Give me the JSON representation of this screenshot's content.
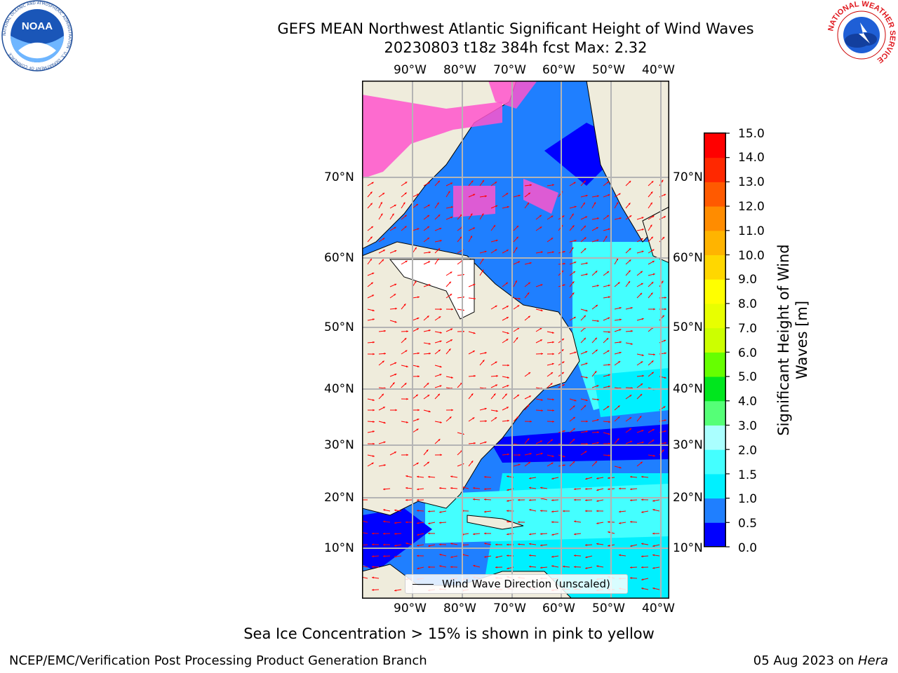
{
  "title": {
    "line1": "GEFS MEAN Northwest Atlantic Significant Height of Wind Waves",
    "line2": "20230803 t18z 384h fcst   Max: 2.32"
  },
  "logos": {
    "noaa": {
      "text": "NOAA",
      "ring_text": "NATIONAL OCEANIC AND ATMOSPHERIC ADMINISTRATION · U.S. DEPARTMENT OF COMMERCE"
    },
    "nws": {
      "ring_text": "NATIONAL WEATHER SERVICE"
    }
  },
  "map": {
    "lon_labels": [
      "90°W",
      "80°W",
      "70°W",
      "60°W",
      "50°W",
      "40°W"
    ],
    "lat_labels": [
      "70°N",
      "60°N",
      "50°N",
      "40°N",
      "30°N",
      "20°N",
      "10°N"
    ],
    "legend": "Wind Wave Direction (unscaled)",
    "colors": {
      "land": "#efecdc",
      "grid": "#b4b4b4",
      "arrows": "#ff0000",
      "sea_ice": "#ff55cc"
    }
  },
  "colorbar": {
    "label": "Significant Height of Wind Waves [m]",
    "ticks": [
      "15.0",
      "14.0",
      "13.0",
      "12.0",
      "11.0",
      "10.0",
      "9.0",
      "8.0",
      "7.0",
      "6.0",
      "5.0",
      "4.0",
      "3.0",
      "2.0",
      "1.5",
      "1.0",
      "0.5",
      "0.0"
    ],
    "colors_bottom_to_top": [
      "#0000ff",
      "#1f7fff",
      "#00f0ff",
      "#44ffff",
      "#aaffff",
      "#55ff77",
      "#00e61e",
      "#66ff00",
      "#ccff00",
      "#e8ff00",
      "#ffff00",
      "#ffd700",
      "#ffb400",
      "#ff8c00",
      "#ff5a00",
      "#ff2800",
      "#ff0000"
    ]
  },
  "footer": {
    "sea_ice_note": "Sea Ice Concentration > 15% is shown in pink to yellow",
    "left": "NCEP/EMC/Verification Post Processing Product Generation Branch",
    "right_prefix": "05 Aug 2023 on ",
    "right_host": "Hera"
  }
}
